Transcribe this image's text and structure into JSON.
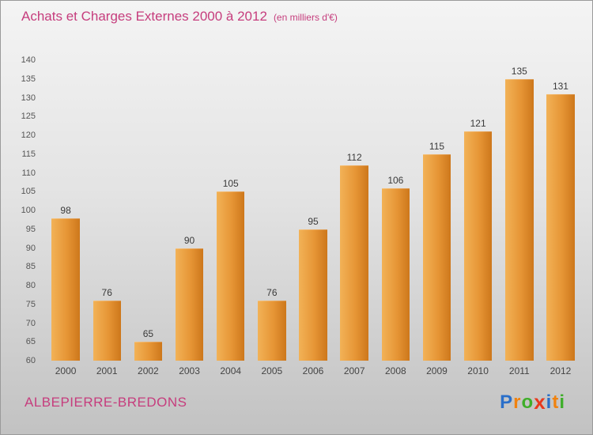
{
  "header": {
    "title": "Achats et Charges Externes 2000 à 2012",
    "subtitle": "(en milliers d'€)"
  },
  "chart_data": {
    "type": "bar",
    "title": "Achats et Charges Externes 2000 à 2012",
    "subtitle": "(en milliers d'€)",
    "categories": [
      "2000",
      "2001",
      "2002",
      "2003",
      "2004",
      "2005",
      "2006",
      "2007",
      "2008",
      "2009",
      "2010",
      "2011",
      "2012"
    ],
    "values": [
      98,
      76,
      65,
      90,
      105,
      76,
      95,
      112,
      106,
      115,
      121,
      135,
      131
    ],
    "ylim": [
      60,
      140
    ],
    "ytick_step": 5,
    "yticks": [
      140,
      135,
      130,
      125,
      120,
      115,
      110,
      105,
      100,
      95,
      90,
      85,
      80,
      75,
      70,
      65,
      60
    ],
    "grid": false,
    "legend": "none",
    "bar_color_start": "#f2b257",
    "bar_color_mid": "#e69535",
    "bar_color_end": "#cd771b",
    "value_label_color": "#3a3a3a",
    "axis_label_color": "#555555",
    "title_color": "#c63d7d"
  },
  "footer": {
    "commune": "ALBEPIERRE-BREDONS",
    "logo_letters": [
      {
        "ch": "P",
        "color": "#2a6fc9"
      },
      {
        "ch": "r",
        "color": "#f0820f"
      },
      {
        "ch": "o",
        "color": "#3fae2a"
      },
      {
        "ch": "x",
        "color": "#e8391d",
        "big": true
      },
      {
        "ch": "i",
        "color": "#2a6fc9"
      },
      {
        "ch": "t",
        "color": "#f0820f"
      },
      {
        "ch": "i",
        "color": "#3fae2a"
      }
    ]
  }
}
